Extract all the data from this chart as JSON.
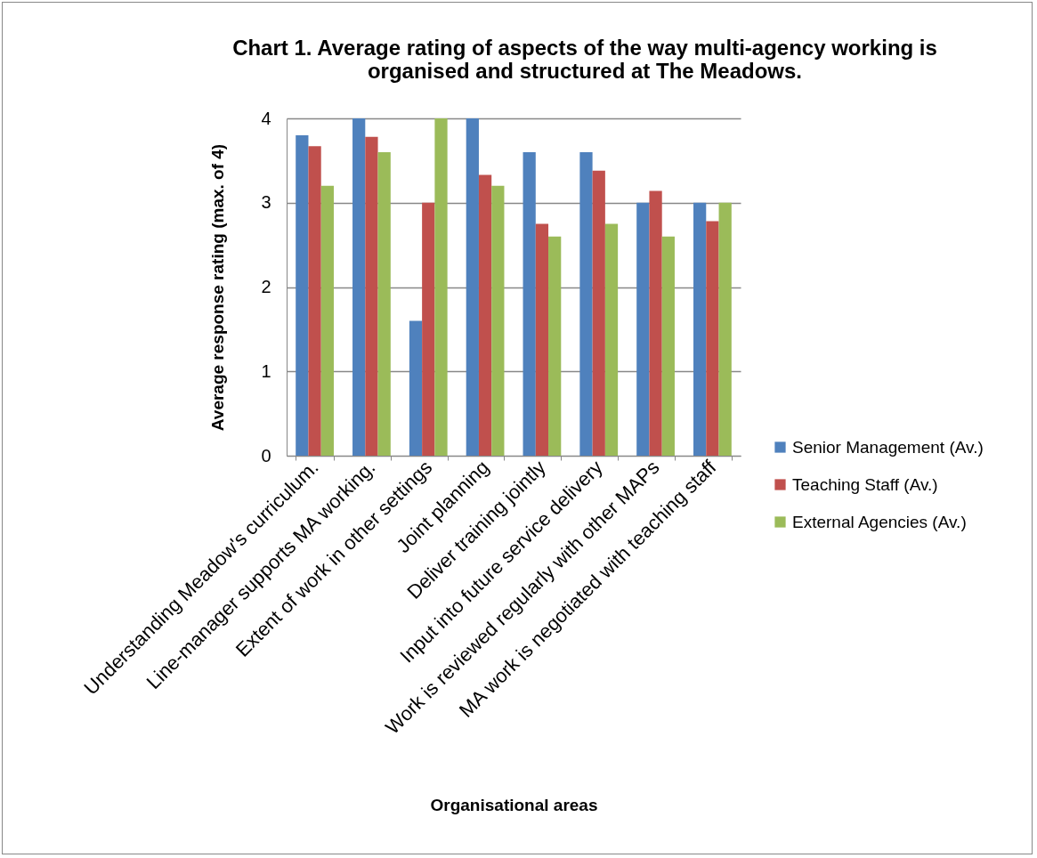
{
  "chart_data": {
    "type": "bar",
    "title": "Chart 1. Average rating of aspects of the way multi-agency working is organised and structured at The Meadows.",
    "xlabel": "Organisational areas",
    "ylabel": "Average response rating (max. of 4)",
    "categories": [
      "Understanding Meadow's curriculum.",
      "Line-manager supports MA working.",
      "Extent of work in other settings",
      "Joint planning",
      "Deliver training jointly",
      "Input into future service delivery",
      "Work is reviewed regularly with other MAPs",
      "MA work is negotiated with teaching staff"
    ],
    "series": [
      {
        "name": "Senior Management (Av.)",
        "color": "#4f81bd",
        "values": [
          3.8,
          4,
          1.6,
          4,
          3.6,
          3.6,
          3,
          3
        ]
      },
      {
        "name": "Teaching Staff (Av.)",
        "color": "#c0504d",
        "values": [
          3.67,
          3.78,
          3,
          3.33,
          2.75,
          3.38,
          3.14,
          2.78
        ]
      },
      {
        "name": "External Agencies (Av.)",
        "color": "#9bbb59",
        "values": [
          3.2,
          3.6,
          4,
          3.2,
          2.6,
          2.75,
          2.6,
          3
        ]
      }
    ],
    "ylim": [
      0,
      4
    ],
    "yticks": [
      0,
      1,
      2,
      3,
      4
    ],
    "grid": "y",
    "legend": "right"
  }
}
